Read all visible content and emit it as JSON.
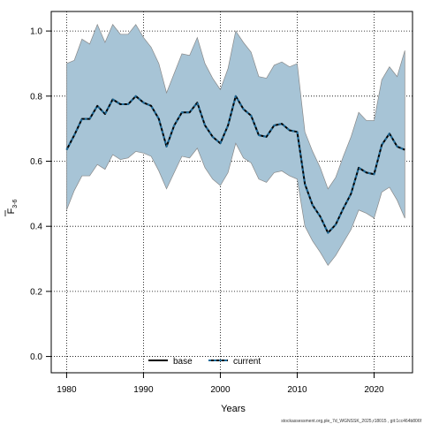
{
  "chart_data": {
    "type": "line",
    "title": "",
    "xlabel": "Years",
    "ylabel_main": "F",
    "ylabel_sub": "3-6",
    "xlim": [
      1978,
      2025
    ],
    "ylim": [
      -0.05,
      1.06
    ],
    "xticks": [
      1980,
      1990,
      2000,
      2010,
      2020
    ],
    "yticks": [
      0.0,
      0.2,
      0.4,
      0.6,
      0.8,
      1.0
    ],
    "xtick_labels": [
      "1980",
      "1990",
      "2000",
      "2010",
      "2020"
    ],
    "ytick_labels": [
      "0.0",
      "0.2",
      "0.4",
      "0.6",
      "0.8",
      "1.0"
    ],
    "grid": true,
    "legend_position": "bottom-center",
    "band_color": "#a7c4d6",
    "band_edge_color": "#888888",
    "line_color": "#000000",
    "current_dash_color": "#1e6b9a",
    "years": [
      1980,
      1981,
      1982,
      1983,
      1984,
      1985,
      1986,
      1987,
      1988,
      1989,
      1990,
      1991,
      1992,
      1993,
      1994,
      1995,
      1996,
      1997,
      1998,
      1999,
      2000,
      2001,
      2002,
      2003,
      2004,
      2005,
      2006,
      2007,
      2008,
      2009,
      2010,
      2011,
      2012,
      2013,
      2014,
      2015,
      2016,
      2017,
      2018,
      2019,
      2020,
      2021,
      2022,
      2023,
      2024
    ],
    "series": [
      {
        "name": "base",
        "style": "solid",
        "values": [
          0.635,
          0.68,
          0.73,
          0.73,
          0.77,
          0.745,
          0.79,
          0.775,
          0.775,
          0.8,
          0.78,
          0.77,
          0.73,
          0.645,
          0.71,
          0.75,
          0.75,
          0.78,
          0.71,
          0.675,
          0.655,
          0.71,
          0.8,
          0.76,
          0.74,
          0.68,
          0.675,
          0.71,
          0.715,
          0.695,
          0.69,
          0.53,
          0.465,
          0.43,
          0.38,
          0.405,
          0.455,
          0.5,
          0.58,
          0.565,
          0.56,
          0.65,
          0.685,
          0.645,
          0.635
        ]
      },
      {
        "name": "current",
        "style": "dashed",
        "values": [
          0.635,
          0.68,
          0.73,
          0.73,
          0.77,
          0.745,
          0.79,
          0.775,
          0.775,
          0.8,
          0.78,
          0.77,
          0.73,
          0.645,
          0.71,
          0.75,
          0.75,
          0.78,
          0.71,
          0.675,
          0.655,
          0.71,
          0.8,
          0.76,
          0.74,
          0.68,
          0.675,
          0.71,
          0.715,
          0.695,
          0.69,
          0.53,
          0.465,
          0.43,
          0.38,
          0.405,
          0.455,
          0.5,
          0.58,
          0.565,
          0.56,
          0.65,
          0.685,
          0.645,
          0.635
        ]
      }
    ],
    "band_upper": [
      0.9,
      0.91,
      0.975,
      0.96,
      1.02,
      0.965,
      1.02,
      0.99,
      0.99,
      1.02,
      0.98,
      0.95,
      0.9,
      0.81,
      0.87,
      0.93,
      0.925,
      0.98,
      0.9,
      0.855,
      0.82,
      0.885,
      1.0,
      0.965,
      0.935,
      0.86,
      0.855,
      0.895,
      0.905,
      0.89,
      0.9,
      0.69,
      0.63,
      0.58,
      0.515,
      0.55,
      0.615,
      0.675,
      0.75,
      0.725,
      0.725,
      0.85,
      0.89,
      0.86,
      0.94
    ],
    "band_lower": [
      0.45,
      0.51,
      0.555,
      0.555,
      0.59,
      0.575,
      0.62,
      0.605,
      0.61,
      0.63,
      0.625,
      0.615,
      0.57,
      0.515,
      0.565,
      0.615,
      0.61,
      0.64,
      0.58,
      0.545,
      0.525,
      0.565,
      0.655,
      0.61,
      0.595,
      0.545,
      0.535,
      0.565,
      0.57,
      0.555,
      0.545,
      0.4,
      0.355,
      0.32,
      0.28,
      0.31,
      0.35,
      0.39,
      0.45,
      0.44,
      0.425,
      0.505,
      0.52,
      0.48,
      0.425
    ]
  },
  "legend": {
    "base_label": "base",
    "current_label": "current"
  },
  "footnote": "stockassessment.org,ple_7d_WGNSSK_2025,r18015 , git:1cc464b806f"
}
